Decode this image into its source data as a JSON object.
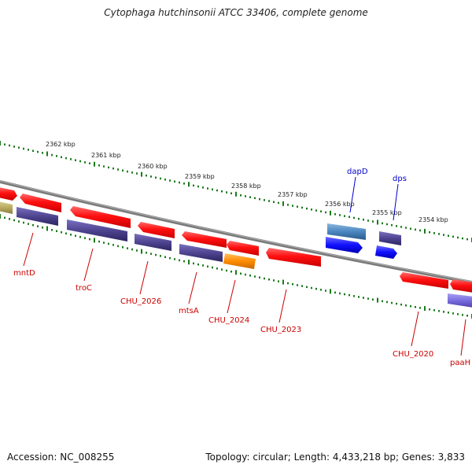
{
  "title": "Cytophaga hutchinsonii ATCC 33406, complete genome",
  "footer": {
    "accession": "Accession: NC_008255",
    "stats": "Topology: circular; Length: 4,433,218 bp; Genes: 3,833"
  },
  "colors": {
    "forward_gene": "#ff1a1a",
    "reverse_gene": "#5a4d9a",
    "highlight_blue": "#1010ff",
    "orange_gene": "#ff8c00",
    "steel_gene": "#4a86c0",
    "backbone": "#7a7a7a",
    "tick": "#1a7a1a",
    "red_label": "#cc0000",
    "blue_label": "#0000cc"
  },
  "scale_labels": [
    "2362 kbp",
    "2361 kbp",
    "2360 kbp",
    "2359 kbp",
    "2358 kbp",
    "2357 kbp",
    "2356 kbp",
    "2355 kbp",
    "2354 kbp"
  ],
  "gene_labels": [
    {
      "text": "mntD",
      "color": "red"
    },
    {
      "text": "troC",
      "color": "red"
    },
    {
      "text": "CHU_2026",
      "color": "red"
    },
    {
      "text": "mtsA",
      "color": "red"
    },
    {
      "text": "CHU_2024",
      "color": "red"
    },
    {
      "text": "CHU_2023",
      "color": "red"
    },
    {
      "text": "CHU_2020",
      "color": "red"
    },
    {
      "text": "paaH",
      "color": "red"
    },
    {
      "text": "dapD",
      "color": "blue"
    },
    {
      "text": "dps",
      "color": "blue"
    }
  ]
}
